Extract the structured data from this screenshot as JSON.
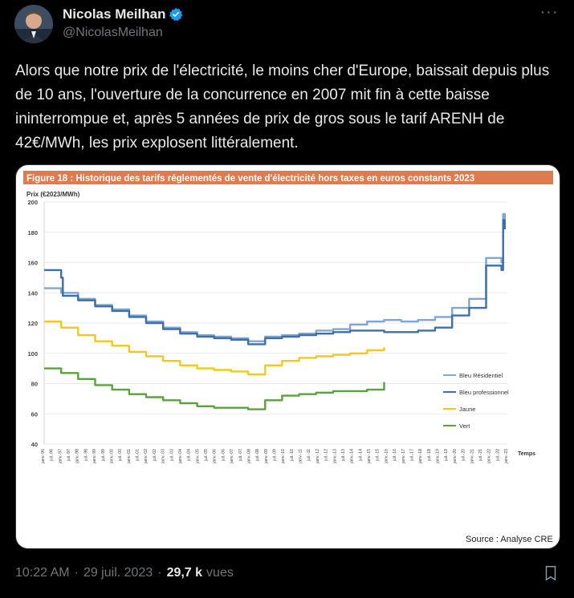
{
  "author": {
    "name": "Nicolas Meilhan",
    "handle": "@NicolasMeilhan",
    "verified": true
  },
  "tweet": {
    "text": "Alors que notre prix de l'électricité, le moins cher d'Europe, baissait depuis plus de 10 ans, l'ouverture de la concurrence en 2007 mit fin à cette baisse ininterrompue et, après 5 années de prix de gros sous le tarif ARENH de 42€/MWh, les prix explosent littéralement."
  },
  "footer": {
    "time": "10:22 AM",
    "date": "29 juil. 2023",
    "views_count": "29,7 k",
    "views_label": "vues"
  },
  "colors": {
    "accent_verified": "#1d9bf0",
    "figure_header": "#e07a4f"
  },
  "chart_data": {
    "type": "line",
    "title": "Figure 18 : Historique des tarifs réglementés de vente d'électricité hors taxes en euros constants 2023",
    "ylabel": "Prix (€2023/MWh)",
    "xlabel": "Temps",
    "source": "Source : Analyse CRE",
    "ylim": [
      40,
      200
    ],
    "yticks": [
      40,
      60,
      80,
      100,
      120,
      140,
      160,
      180,
      200
    ],
    "xticks": [
      "janv.-96",
      "juil.-96",
      "janv.-97",
      "juil.-97",
      "janv.-98",
      "juil.-98",
      "janv.-99",
      "juil.-99",
      "janv.-00",
      "juil.-00",
      "janv.-01",
      "juil.-01",
      "janv.-02",
      "juil.-02",
      "janv.-03",
      "juil.-03",
      "janv.-04",
      "juil.-04",
      "janv.-05",
      "juil.-05",
      "janv.-06",
      "juil.-06",
      "janv.-07",
      "juil.-07",
      "janv.-08",
      "juil.-08",
      "janv.-09",
      "juil.-09",
      "janv.-10",
      "juil.-10",
      "janv.-11",
      "juil.-11",
      "janv.-12",
      "juil.-12",
      "janv.-13",
      "juil.-13",
      "janv.-14",
      "juil.-14",
      "janv.-15",
      "juil.-15",
      "janv.-16",
      "juil.-16",
      "janv.-17",
      "juil.-17",
      "janv.-18",
      "juil.-18",
      "janv.-19",
      "juil.-19",
      "janv.-20",
      "juil.-20",
      "janv.-21",
      "juil.-21",
      "janv.-22",
      "juil.-22",
      "janv.-23"
    ],
    "legend_position": "right",
    "series": [
      {
        "name": "Bleu Résidentiel",
        "color": "#7fa6d6",
        "points": [
          [
            1996,
            143
          ],
          [
            1997,
            140
          ],
          [
            1998,
            136
          ],
          [
            1999,
            132
          ],
          [
            2000,
            129
          ],
          [
            2001,
            125
          ],
          [
            2002,
            121
          ],
          [
            2003,
            117
          ],
          [
            2004,
            114
          ],
          [
            2005,
            112
          ],
          [
            2006,
            111
          ],
          [
            2007,
            110
          ],
          [
            2008,
            108
          ],
          [
            2009,
            111
          ],
          [
            2010,
            112
          ],
          [
            2011,
            113
          ],
          [
            2012,
            115
          ],
          [
            2013,
            116
          ],
          [
            2014,
            119
          ],
          [
            2015,
            121
          ],
          [
            2016,
            122
          ],
          [
            2017,
            121
          ],
          [
            2018,
            122
          ],
          [
            2019,
            124
          ],
          [
            2020,
            130
          ],
          [
            2021,
            136
          ],
          [
            2022,
            163
          ],
          [
            2022.9,
            160
          ],
          [
            2023,
            192
          ],
          [
            2023.1,
            186
          ]
        ]
      },
      {
        "name": "Bleu professionnel",
        "color": "#3e6fa8",
        "points": [
          [
            1996,
            155
          ],
          [
            1997,
            150
          ],
          [
            1997.1,
            138
          ],
          [
            1998,
            135
          ],
          [
            1999,
            131
          ],
          [
            2000,
            128
          ],
          [
            2001,
            124
          ],
          [
            2002,
            120
          ],
          [
            2003,
            116
          ],
          [
            2004,
            113
          ],
          [
            2005,
            111
          ],
          [
            2006,
            110
          ],
          [
            2007,
            109
          ],
          [
            2008,
            106
          ],
          [
            2009,
            110
          ],
          [
            2010,
            111
          ],
          [
            2011,
            112
          ],
          [
            2012,
            113
          ],
          [
            2013,
            114
          ],
          [
            2014,
            115
          ],
          [
            2015,
            115
          ],
          [
            2016,
            114
          ],
          [
            2017,
            114
          ],
          [
            2018,
            115
          ],
          [
            2019,
            117
          ],
          [
            2020,
            125
          ],
          [
            2021,
            130
          ],
          [
            2022,
            158
          ],
          [
            2022.9,
            155
          ],
          [
            2023,
            188
          ],
          [
            2023.1,
            182
          ]
        ]
      },
      {
        "name": "Jaune",
        "color": "#f2c81d",
        "points": [
          [
            1996,
            121
          ],
          [
            1997,
            117
          ],
          [
            1998,
            112
          ],
          [
            1999,
            108
          ],
          [
            2000,
            105
          ],
          [
            2001,
            101
          ],
          [
            2002,
            98
          ],
          [
            2003,
            95
          ],
          [
            2004,
            92
          ],
          [
            2005,
            90
          ],
          [
            2006,
            89
          ],
          [
            2007,
            88
          ],
          [
            2008,
            86
          ],
          [
            2009,
            92
          ],
          [
            2010,
            95
          ],
          [
            2011,
            97
          ],
          [
            2012,
            98
          ],
          [
            2013,
            99
          ],
          [
            2014,
            100
          ],
          [
            2015,
            102
          ],
          [
            2016,
            104
          ]
        ]
      },
      {
        "name": "Vert",
        "color": "#5aa33a",
        "points": [
          [
            1996,
            90
          ],
          [
            1997,
            87
          ],
          [
            1998,
            83
          ],
          [
            1999,
            79
          ],
          [
            2000,
            76
          ],
          [
            2001,
            73
          ],
          [
            2002,
            71
          ],
          [
            2003,
            69
          ],
          [
            2004,
            67
          ],
          [
            2005,
            65
          ],
          [
            2006,
            64
          ],
          [
            2007,
            64
          ],
          [
            2008,
            63
          ],
          [
            2009,
            69
          ],
          [
            2010,
            72
          ],
          [
            2011,
            73
          ],
          [
            2012,
            74
          ],
          [
            2013,
            75
          ],
          [
            2014,
            75
          ],
          [
            2015,
            76
          ],
          [
            2016,
            81
          ]
        ]
      }
    ]
  }
}
